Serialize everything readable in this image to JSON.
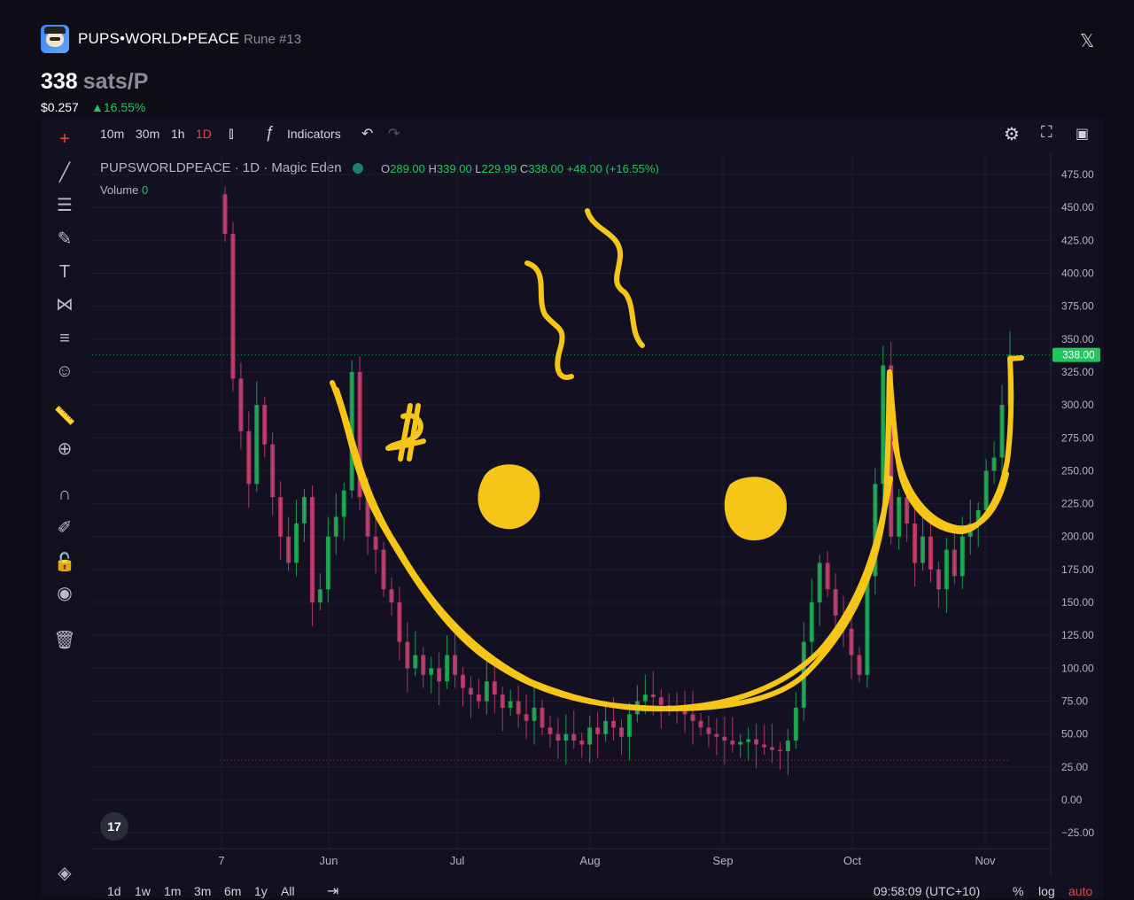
{
  "header": {
    "name": "PUPS•WORLD•PEACE",
    "rune": "Rune #13",
    "price_value": "338",
    "price_unit": "sats/P",
    "usd": "$0.257",
    "change": "▲16.55%",
    "close_icon": "x-logo-icon"
  },
  "toolbar": {
    "intervals": [
      "10m",
      "30m",
      "1h",
      "1D"
    ],
    "active_interval": "1D",
    "indicators_label": "Indicators",
    "icons": [
      "candle-type-icon",
      "indicators-icon",
      "undo-icon",
      "redo-icon",
      "settings-icon",
      "fullscreen-icon",
      "camera-icon"
    ]
  },
  "left_tools": [
    "crosshair-icon",
    "trendline-icon",
    "fib-icon",
    "brush-icon",
    "text-icon",
    "pattern-icon",
    "forecast-icon",
    "emoji-icon",
    "ruler-icon",
    "zoom-in-icon",
    "magnet-icon",
    "lock-draw-icon",
    "lock-icon",
    "eye-icon",
    "trash-icon",
    "layers-icon"
  ],
  "legend": {
    "symbol": "PUPSWORLDPEACE · 1D · Magic Eden",
    "o_label": "O",
    "o": "289.00",
    "h_label": "H",
    "h": "339.00",
    "l_label": "L",
    "l": "229.99",
    "c_label": "C",
    "c": "338.00",
    "change": "+48.00 (+16.55%)",
    "volume_label": "Volume",
    "volume_value": "0"
  },
  "bottom": {
    "ranges": [
      "1d",
      "1w",
      "1m",
      "3m",
      "6m",
      "1y",
      "All"
    ],
    "time": "09:58:09 (UTC+10)",
    "pct": "%",
    "log": "log",
    "auto": "auto"
  },
  "colors": {
    "up": "#22c55e",
    "down": "#e0457b",
    "highlight": "#f5c518",
    "current_price_label_bg": "#22c55e",
    "accent_red": "#ef4444"
  },
  "chart_data": {
    "type": "candlestick",
    "title": "PUPSWORLDPEACE · 1D · Magic Eden",
    "ylim": [
      -25,
      475
    ],
    "y_ticks": [
      "475.00",
      "450.00",
      "425.00",
      "400.00",
      "375.00",
      "350.00",
      "325.00",
      "300.00",
      "275.00",
      "250.00",
      "225.00",
      "200.00",
      "175.00",
      "150.00",
      "125.00",
      "100.00",
      "75.00",
      "50.00",
      "25.00",
      "0.00",
      "−25.00"
    ],
    "y_tick_values": [
      475,
      450,
      425,
      400,
      375,
      350,
      325,
      300,
      275,
      250,
      225,
      200,
      175,
      150,
      125,
      100,
      75,
      50,
      25,
      0,
      -25
    ],
    "x_ticks": [
      "7",
      "Jun",
      "Jul",
      "Aug",
      "Sep",
      "Oct",
      "Nov"
    ],
    "current_price": 338,
    "current_price_label": "338.00",
    "daily_close_path": [
      430,
      320,
      280,
      240,
      300,
      270,
      230,
      200,
      180,
      210,
      230,
      150,
      160,
      200,
      215,
      235,
      325,
      230,
      200,
      190,
      160,
      150,
      120,
      100,
      110,
      95,
      100,
      90,
      110,
      95,
      85,
      80,
      75,
      90,
      80,
      70,
      75,
      65,
      60,
      70,
      55,
      50,
      45,
      50,
      45,
      42,
      55,
      50,
      60,
      55,
      48,
      65,
      75,
      80,
      78,
      72,
      70,
      68,
      65,
      60,
      55,
      50,
      48,
      45,
      42,
      44,
      46,
      42,
      40,
      38,
      37,
      45,
      70,
      120,
      150,
      180,
      160,
      140,
      130,
      110,
      95,
      170,
      240,
      330,
      200,
      230,
      210,
      180,
      200,
      175,
      160,
      190,
      170,
      200,
      210,
      220,
      250,
      260,
      300,
      338
    ],
    "annotation_strokes": [
      {
        "kind": "smile-left",
        "note": "hand-drawn yellow smile"
      },
      {
        "kind": "eye-left"
      },
      {
        "kind": "eye-right"
      },
      {
        "kind": "squiggle-1"
      },
      {
        "kind": "squiggle-2"
      },
      {
        "kind": "bitcoin-sign"
      }
    ]
  }
}
